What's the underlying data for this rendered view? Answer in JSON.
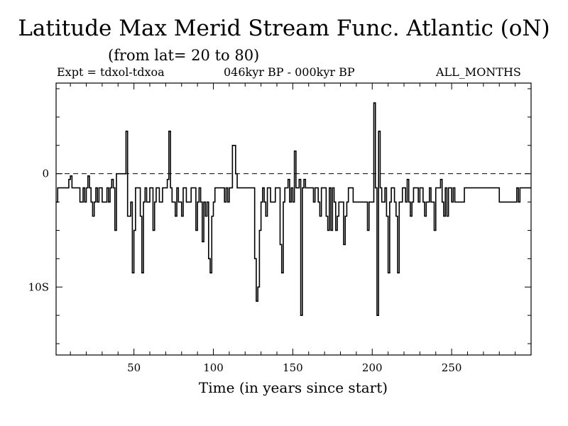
{
  "header": {
    "title": "Latitude Max Merid Stream Func. Atlantic (oN)",
    "subtitle": "(from lat= 20 to 80)",
    "expt": "Expt = tdxol-tdxoa",
    "period": "046kyr BP - 000kyr BP",
    "months": "ALL_MONTHS"
  },
  "chart_data": {
    "type": "line",
    "title": "Latitude Max Merid Stream Func. Atlantic (oN)",
    "subtitle": "(from lat= 20 to 80)",
    "xlabel": "Time (in years since start)",
    "ylabel": "",
    "xlim": [
      1,
      300
    ],
    "ylim": [
      -16,
      8
    ],
    "x_ticks": [
      50,
      100,
      150,
      200,
      250
    ],
    "x_tick_labels": [
      "50",
      "100",
      "150",
      "200",
      "250"
    ],
    "y_ticks": [
      0,
      -10
    ],
    "y_tick_labels": [
      "0",
      "10S"
    ],
    "reference_line": {
      "y": 0,
      "style": "dashed"
    },
    "grid": false,
    "series": [
      {
        "name": "",
        "x_start": 1,
        "x_step": 1,
        "step": true,
        "values": [
          -2.5,
          -1.25,
          -1.25,
          -1.25,
          -1.25,
          -1.25,
          -1.25,
          -1.25,
          -0.5,
          -0.2,
          -1.25,
          -1.25,
          -1.25,
          -1.25,
          -1.25,
          -2.5,
          -2.5,
          -1.25,
          -2.5,
          -1.25,
          -0.2,
          -1.25,
          -2.5,
          -3.75,
          -2.5,
          -1.25,
          -2.5,
          -1.25,
          -1.25,
          -2.5,
          -2.5,
          -2.5,
          -1.25,
          -2.5,
          -1.25,
          -0.5,
          -1.25,
          -5.0,
          0,
          0,
          0,
          0,
          0,
          0,
          3.75,
          -3.75,
          -3.75,
          -2.5,
          -8.75,
          -5.0,
          -1.25,
          -1.25,
          -1.25,
          -3.75,
          -8.75,
          -2.5,
          -1.25,
          -2.5,
          -2.5,
          -1.25,
          -1.25,
          -5.0,
          -2.5,
          -1.25,
          -1.25,
          -2.5,
          -2.5,
          -1.25,
          -1.25,
          -1.25,
          -0.5,
          3.75,
          -1.25,
          -2.5,
          -2.5,
          -3.75,
          -1.25,
          -2.5,
          -2.5,
          -3.75,
          -1.25,
          -1.25,
          -2.5,
          -2.5,
          -2.5,
          -1.25,
          -1.25,
          -1.25,
          -5.0,
          -2.5,
          -1.25,
          -2.5,
          -6.0,
          -2.5,
          -3.75,
          -2.5,
          -7.5,
          -8.75,
          -3.75,
          -2.5,
          -1.25,
          -1.25,
          -1.25,
          -1.25,
          -1.25,
          -1.25,
          -2.5,
          -1.25,
          -2.5,
          -1.25,
          -1.25,
          2.5,
          2.5,
          0,
          -1.25,
          -1.25,
          -1.25,
          -1.25,
          -1.25,
          -1.25,
          -1.25,
          -1.25,
          -1.25,
          -1.25,
          -1.25,
          -7.5,
          -11.25,
          -10.0,
          -5.0,
          -2.5,
          -1.25,
          -2.5,
          -3.75,
          -1.25,
          -1.25,
          -2.5,
          -2.5,
          -2.5,
          -1.25,
          -1.25,
          -1.25,
          -6.25,
          -8.75,
          -2.5,
          -1.25,
          -1.25,
          -0.5,
          -2.5,
          -1.25,
          -2.5,
          2.0,
          -1.25,
          -1.25,
          -0.5,
          -12.5,
          -1.25,
          -0.5,
          -1.25,
          -1.25,
          -1.25,
          -1.25,
          -1.25,
          -2.5,
          -1.25,
          -1.25,
          -2.5,
          -3.75,
          -1.25,
          -1.25,
          -1.25,
          -3.75,
          -5.0,
          -1.25,
          -5.0,
          -1.25,
          -2.5,
          -5.0,
          -3.75,
          -2.5,
          -2.5,
          -2.5,
          -6.25,
          -3.75,
          -2.5,
          -1.25,
          -1.25,
          -1.25,
          -2.5,
          -2.5,
          -2.5,
          -2.5,
          -2.5,
          -2.5,
          -2.5,
          -2.5,
          -2.5,
          -5.0,
          -2.5,
          -2.5,
          -2.5,
          6.25,
          -1.25,
          -12.5,
          3.75,
          -1.25,
          -2.5,
          -2.5,
          -1.25,
          -3.75,
          -8.75,
          -2.5,
          -1.25,
          -1.25,
          -2.5,
          -3.75,
          -8.75,
          -2.5,
          -2.5,
          -1.25,
          -1.25,
          -2.5,
          -0.5,
          -2.5,
          -3.75,
          -2.5,
          -1.25,
          -1.25,
          -1.25,
          -2.5,
          -1.25,
          -1.25,
          -2.5,
          -3.75,
          -2.5,
          -2.5,
          -1.25,
          -2.5,
          -2.5,
          -5.0,
          -1.25,
          -1.25,
          -1.25,
          -0.5,
          -2.5,
          -3.75,
          -1.25,
          -3.75,
          -1.25,
          -1.25,
          -2.5,
          -1.25,
          -2.5,
          -2.5,
          -2.5,
          -2.5,
          -2.5,
          -2.5,
          -1.25,
          -1.25,
          -1.25,
          -1.25,
          -1.25,
          -1.25,
          -1.25,
          -1.25,
          -1.25,
          -1.25,
          -1.25,
          -1.25,
          -1.25,
          -1.25,
          -1.25,
          -1.25,
          -1.25,
          -1.25,
          -1.25,
          -1.25,
          -1.25,
          -1.25,
          -2.5,
          -2.5,
          -2.5,
          -2.5,
          -2.5,
          -2.5,
          -2.5,
          -2.5,
          -2.5,
          -2.5,
          -2.5,
          -1.25,
          -2.5,
          -1.25,
          -1.25,
          -1.25,
          -1.25,
          -1.25,
          -1.25,
          -1.25,
          -1.25
        ]
      }
    ]
  }
}
